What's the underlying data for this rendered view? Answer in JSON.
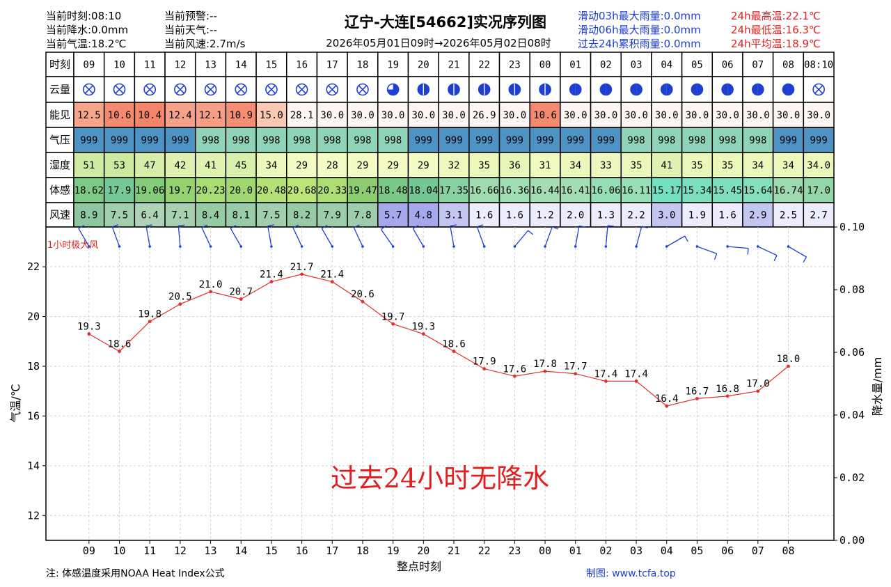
{
  "header": {
    "current_time": "当前时刻:08:10",
    "current_precip": "当前降水:0.0mm",
    "current_temp": "当前气温:18.2℃",
    "current_warning": "当前预警:--",
    "current_weather": "当前天气:--",
    "current_wind": "当前风速:2.7m/s",
    "rain_03h": "滑动03h最大雨量:0.0mm",
    "rain_06h": "滑动06h最大雨量:0.0mm",
    "rain_24h": "过去24h累积雨量:0.0mm",
    "max_temp": "24h最高温:22.1℃",
    "min_temp": "24h最低温:16.3℃",
    "avg_temp": "24h平均温:18.9℃"
  },
  "chart_data": {
    "type": "line",
    "title": "辽宁-大连[54662]实况序列图",
    "subtitle": "2026年05月01日09时→2026年05月02日08时",
    "table": {
      "row_labels": [
        "时刻",
        "云量",
        "能见",
        "气压",
        "湿度",
        "体感",
        "风速"
      ],
      "times": [
        "09",
        "10",
        "11",
        "12",
        "13",
        "14",
        "15",
        "16",
        "17",
        "18",
        "19",
        "20",
        "21",
        "22",
        "23",
        "00",
        "01",
        "02",
        "03",
        "04",
        "05",
        "06",
        "07",
        "08",
        "08:10"
      ],
      "cloud": [
        "⊗",
        "⊗",
        "⊗",
        "⊗",
        "⊗",
        "⊗",
        "⊗",
        "⊗",
        "⊗",
        "⊗",
        "◕",
        "⬤",
        "⬤",
        "⬤",
        "⬤",
        "⬤",
        "◑",
        "◑",
        "◑",
        "◑",
        "◑",
        "◑",
        "◑",
        "◑",
        "⊗"
      ],
      "visibility": [
        "12.5",
        "10.6",
        "10.4",
        "12.4",
        "12.1",
        "10.9",
        "15.0",
        "28.1",
        "30.0",
        "30.0",
        "30.0",
        "30.0",
        "30.0",
        "26.9",
        "30.0",
        "10.6",
        "30.0",
        "30.0",
        "30.0",
        "30.0",
        "30.0",
        "30.0",
        "30.0",
        "30.0",
        "30.0"
      ],
      "pressure": [
        "999",
        "999",
        "999",
        "999",
        "998",
        "998",
        "998",
        "998",
        "998",
        "998",
        "998",
        "999",
        "999",
        "999",
        "999",
        "999",
        "999",
        "999",
        "998",
        "998",
        "998",
        "998",
        "998",
        "999",
        "999"
      ],
      "humidity": [
        "51",
        "53",
        "47",
        "42",
        "41",
        "45",
        "34",
        "29",
        "28",
        "29",
        "29",
        "29",
        "32",
        "35",
        "36",
        "31",
        "34",
        "33",
        "35",
        "41",
        "35",
        "35",
        "34",
        "34",
        "34.0"
      ],
      "feels_like": [
        "18.62",
        "17.9",
        "19.06",
        "19.7",
        "20.23",
        "20.0",
        "20.48",
        "20.68",
        "20.33",
        "19.47",
        "18.48",
        "18.04",
        "17.35",
        "16.66",
        "16.36",
        "16.44",
        "16.41",
        "16.06",
        "16.11",
        "15.17",
        "15.34",
        "15.45",
        "15.64",
        "16.74",
        "17.0"
      ],
      "wind_speed": [
        "8.9",
        "7.5",
        "6.4",
        "7.1",
        "8.4",
        "8.1",
        "7.5",
        "8.2",
        "7.9",
        "7.8",
        "5.7",
        "4.8",
        "3.1",
        "1.6",
        "1.6",
        "1.2",
        "2.0",
        "1.3",
        "2.2",
        "3.0",
        "1.9",
        "1.6",
        "2.9",
        "2.5",
        "2.7"
      ]
    },
    "gust_label": "1小时极大风",
    "x": [
      "09",
      "10",
      "11",
      "12",
      "13",
      "14",
      "15",
      "16",
      "17",
      "18",
      "19",
      "20",
      "21",
      "22",
      "23",
      "00",
      "01",
      "02",
      "03",
      "04",
      "05",
      "06",
      "07",
      "08"
    ],
    "series": [
      {
        "values": [
          19.3,
          18.6,
          19.8,
          20.5,
          21.0,
          20.7,
          21.4,
          21.7,
          21.4,
          20.6,
          19.7,
          19.3,
          18.6,
          17.9,
          17.6,
          17.8,
          17.7,
          17.4,
          17.4,
          16.4,
          16.7,
          16.8,
          17.0,
          18.0
        ]
      }
    ],
    "point_labels": [
      "19.3",
      "18.6",
      "19.8",
      "20.5",
      "21.0",
      "20.7",
      "21.4",
      "21.7",
      "21.4",
      "20.6",
      "19.7",
      "19.3",
      "18.6",
      "17.9",
      "17.6",
      "17.8",
      "17.7",
      "17.4",
      "17.4",
      "16.4",
      "16.7",
      "16.8",
      "17.0",
      "18.0"
    ],
    "xlabel": "整点时刻",
    "ylabel": "气温/℃",
    "ylabel_right": "降水量/mm",
    "ylim": [
      11.0,
      23.6
    ],
    "yticks": [
      "12",
      "14",
      "16",
      "18",
      "20",
      "22"
    ],
    "y2lim": [
      0.0,
      0.1
    ],
    "y2ticks": [
      "0.00",
      "0.02",
      "0.04",
      "0.06",
      "0.08",
      "0.10"
    ],
    "grid": true,
    "annotation": "过去24小时无降水"
  },
  "footer": {
    "note": "注:  体感温度采用NOAA Heat Index公式",
    "credit": "制图:  www.tcfa.top"
  },
  "colors": {
    "line": "#e03030",
    "blue_text": "#1e3fd0",
    "red_text": "#e02020",
    "wind_barb": "#1e3fd0",
    "pressure_999": "#4f92c4",
    "pressure_998": "#8fd3b9"
  }
}
